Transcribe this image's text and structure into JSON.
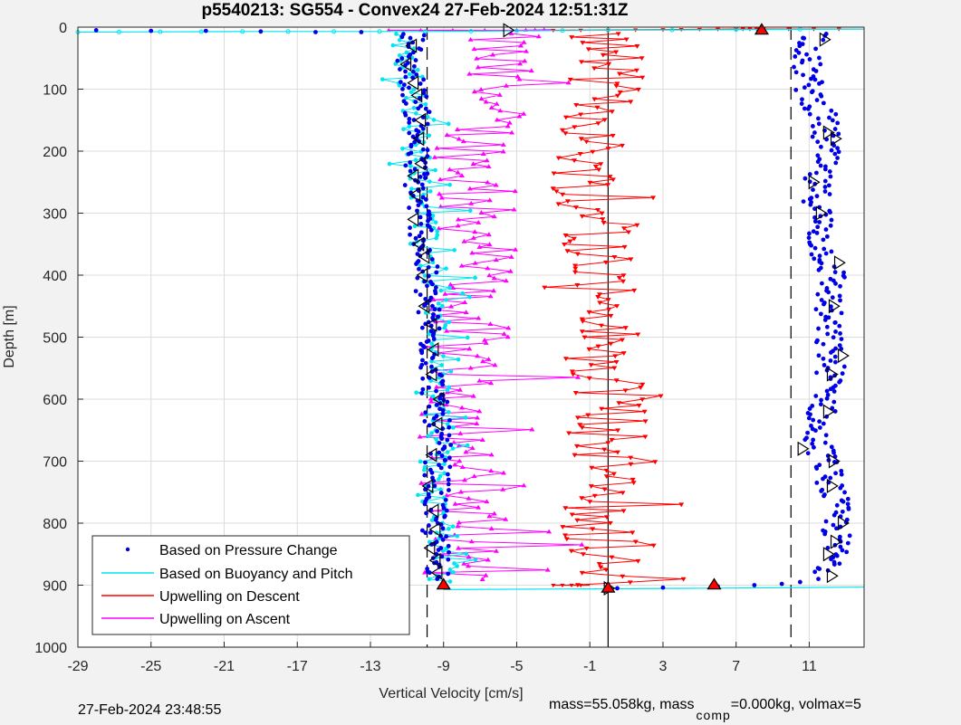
{
  "footer": {
    "timestamp": "27-Feb-2024 23:48:55",
    "mass_left": "mass=55.058kg, mass",
    "mass_sub": "comp",
    "mass_right": "=0.000kg, volmax=5"
  },
  "colors": {
    "pressure": "#0000e6",
    "buoyancy": "#00e5ee",
    "descent": "#ff0000",
    "ascent": "#ff00ff",
    "grid": "#dcdcdc",
    "background": "#f2f2f2"
  },
  "chart_data": {
    "type": "scatter",
    "title": "p5540213: SG554 - Convex24 27-Feb-2024 12:51:31Z",
    "xlabel": "Vertical Velocity [cm/s]",
    "ylabel": "Depth [m]",
    "xlim": [
      -29,
      14
    ],
    "ylim": [
      0,
      1000
    ],
    "y_reversed": true,
    "xticks": [
      -29,
      -25,
      -21,
      -17,
      -13,
      -9,
      -5,
      -1,
      3,
      7,
      11
    ],
    "yticks": [
      0,
      100,
      200,
      300,
      400,
      500,
      600,
      700,
      800,
      900,
      1000
    ],
    "grid": true,
    "legend_position": "bottom-left",
    "reference_lines": [
      {
        "x": -9.9,
        "style": "dashed",
        "y_range": [
          0,
          1000
        ]
      },
      {
        "x": 10.0,
        "style": "dashed",
        "y_range": [
          0,
          1000
        ]
      },
      {
        "x": 0,
        "style": "solid",
        "y_range": [
          0,
          1000
        ]
      }
    ],
    "series": [
      {
        "name": "Based on Pressure Change",
        "profile": [
          [
            10,
            -10.5
          ],
          [
            50,
            -11.0
          ],
          [
            100,
            -10.6
          ],
          [
            150,
            -10.4
          ],
          [
            200,
            -10.5
          ],
          [
            250,
            -10.5
          ],
          [
            300,
            -10.3
          ],
          [
            350,
            -10.1
          ],
          [
            400,
            -10.0
          ],
          [
            450,
            -9.9
          ],
          [
            500,
            -9.7
          ],
          [
            550,
            -9.6
          ],
          [
            600,
            -9.5
          ],
          [
            650,
            -9.3
          ],
          [
            700,
            -9.3
          ],
          [
            750,
            -9.4
          ],
          [
            800,
            -9.6
          ],
          [
            850,
            -9.3
          ],
          [
            890,
            -9.2
          ]
        ],
        "ascent_profile": [
          [
            10,
            11.5
          ],
          [
            50,
            10.8
          ],
          [
            100,
            11.0
          ],
          [
            150,
            11.8
          ],
          [
            200,
            11.9
          ],
          [
            250,
            11.3
          ],
          [
            300,
            11.6
          ],
          [
            350,
            11.6
          ],
          [
            400,
            12.3
          ],
          [
            450,
            12.0
          ],
          [
            500,
            12.0
          ],
          [
            550,
            12.2
          ],
          [
            600,
            12.0
          ],
          [
            650,
            11.2
          ],
          [
            700,
            11.9
          ],
          [
            750,
            12.3
          ],
          [
            800,
            12.5
          ],
          [
            850,
            12.4
          ],
          [
            880,
            12.0
          ]
        ],
        "surface": [
          [
            5,
            -28
          ],
          [
            6,
            -25
          ],
          [
            6,
            -22
          ],
          [
            7,
            -19
          ],
          [
            8,
            -16
          ],
          [
            8,
            -13.5
          ]
        ],
        "bottom": [
          [
            905,
            0.5
          ],
          [
            904,
            3
          ],
          [
            902,
            6
          ],
          [
            900,
            8
          ],
          [
            898,
            9.5
          ],
          [
            895,
            10.5
          ],
          [
            890,
            11.5
          ]
        ]
      },
      {
        "name": "Based on Buoyancy and Pitch",
        "profile": [
          [
            10,
            -11.5
          ],
          [
            50,
            -11.0
          ],
          [
            100,
            -10.8
          ],
          [
            150,
            -10.5
          ],
          [
            200,
            -10.5
          ],
          [
            250,
            -10.0
          ],
          [
            300,
            -10.0
          ],
          [
            350,
            -10.2
          ],
          [
            400,
            -9.5
          ],
          [
            450,
            -9.4
          ],
          [
            500,
            -9.3
          ],
          [
            550,
            -9.4
          ],
          [
            600,
            -9.2
          ],
          [
            650,
            -9.2
          ],
          [
            700,
            -9.3
          ],
          [
            750,
            -9.9
          ],
          [
            800,
            -9.0
          ],
          [
            850,
            -9.0
          ],
          [
            895,
            -9.0
          ]
        ],
        "surface": [
          [
            8,
            -29
          ],
          [
            7,
            -20
          ],
          [
            7,
            -10
          ],
          [
            5,
            0
          ],
          [
            3,
            14
          ]
        ],
        "bottom": [
          [
            907,
            -9
          ],
          [
            906,
            -1
          ],
          [
            905,
            5
          ],
          [
            904,
            10
          ],
          [
            903,
            14
          ]
        ]
      },
      {
        "name": "Upwelling on Descent",
        "profile": [
          [
            10,
            -0.1
          ],
          [
            50,
            0.1
          ],
          [
            100,
            -0.2
          ],
          [
            150,
            -0.6
          ],
          [
            200,
            -1.0
          ],
          [
            250,
            -1.1
          ],
          [
            300,
            -0.7
          ],
          [
            350,
            -0.5
          ],
          [
            400,
            -0.1
          ],
          [
            450,
            -0.2
          ],
          [
            500,
            -0.2
          ],
          [
            550,
            -0.3
          ],
          [
            600,
            0.1
          ],
          [
            650,
            0.2
          ],
          [
            700,
            -0.1
          ],
          [
            750,
            -0.5
          ],
          [
            800,
            -0.4
          ],
          [
            850,
            -0.3
          ],
          [
            900,
            0
          ]
        ],
        "surface": [
          [
            5,
            -3
          ],
          [
            4,
            3
          ],
          [
            3,
            7
          ],
          [
            3,
            8.5
          ],
          [
            3,
            14
          ]
        ],
        "bottom": [
          [
            900,
            -3
          ],
          [
            900,
            -1
          ]
        ]
      },
      {
        "name": "Upwelling on Ascent",
        "profile": [
          [
            10,
            -6.0
          ],
          [
            50,
            -6.2
          ],
          [
            100,
            -6.5
          ],
          [
            150,
            -6.7
          ],
          [
            200,
            -7.2
          ],
          [
            250,
            -7.5
          ],
          [
            300,
            -7.3
          ],
          [
            350,
            -7.0
          ],
          [
            400,
            -7.2
          ],
          [
            450,
            -7.8
          ],
          [
            500,
            -7.6
          ],
          [
            550,
            -7.5
          ],
          [
            600,
            -7.8
          ],
          [
            650,
            -8.2
          ],
          [
            700,
            -8.0
          ],
          [
            750,
            -7.5
          ],
          [
            800,
            -7.6
          ],
          [
            850,
            -8.0
          ],
          [
            890,
            -8.5
          ]
        ],
        "surface": [
          [
            5,
            -12
          ],
          [
            5,
            -5
          ],
          [
            4,
            -3
          ]
        ],
        "bottom": [
          [
            890,
            -15.5
          ],
          [
            895,
            -11
          ]
        ]
      }
    ],
    "markers": {
      "descent_left_triangles": [
        [
          30,
          -10.7
        ],
        [
          60,
          -11.0
        ],
        [
          90,
          -10.6
        ],
        [
          110,
          -10.4
        ],
        [
          150,
          -10.2
        ],
        [
          180,
          -10.3
        ],
        [
          220,
          -10.2
        ],
        [
          240,
          -10.6
        ],
        [
          270,
          -10.5
        ],
        [
          310,
          -10.6
        ],
        [
          350,
          -10.3
        ],
        [
          370,
          -10.0
        ],
        [
          400,
          -10.1
        ],
        [
          450,
          -10.0
        ],
        [
          480,
          -9.6
        ],
        [
          520,
          -9.5
        ],
        [
          560,
          -9.6
        ],
        [
          600,
          -9.2
        ],
        [
          640,
          -9.3
        ],
        [
          690,
          -9.6
        ],
        [
          740,
          -9.8
        ],
        [
          780,
          -9.5
        ],
        [
          810,
          -9.4
        ],
        [
          840,
          -9.7
        ],
        [
          860,
          -9.4
        ],
        [
          880,
          -9.3
        ]
      ],
      "ascent_right_triangles": [
        [
          5,
          -5.5
        ],
        [
          20,
          11.8
        ],
        [
          170,
          12.0
        ],
        [
          180,
          12.4
        ],
        [
          250,
          11.2
        ],
        [
          300,
          11.6
        ],
        [
          380,
          12.6
        ],
        [
          450,
          12.3
        ],
        [
          530,
          12.8
        ],
        [
          560,
          12.2
        ],
        [
          620,
          12.0
        ],
        [
          680,
          10.6
        ],
        [
          700,
          12.3
        ],
        [
          740,
          12.2
        ],
        [
          800,
          12.8
        ],
        [
          830,
          12.4
        ],
        [
          850,
          12.0
        ],
        [
          885,
          12.2
        ],
        [
          905,
          0
        ]
      ],
      "red_triangles": [
        [
          900,
          -9.0
        ],
        [
          900,
          5.8
        ],
        [
          905,
          0
        ],
        [
          5,
          8.4
        ]
      ]
    }
  }
}
